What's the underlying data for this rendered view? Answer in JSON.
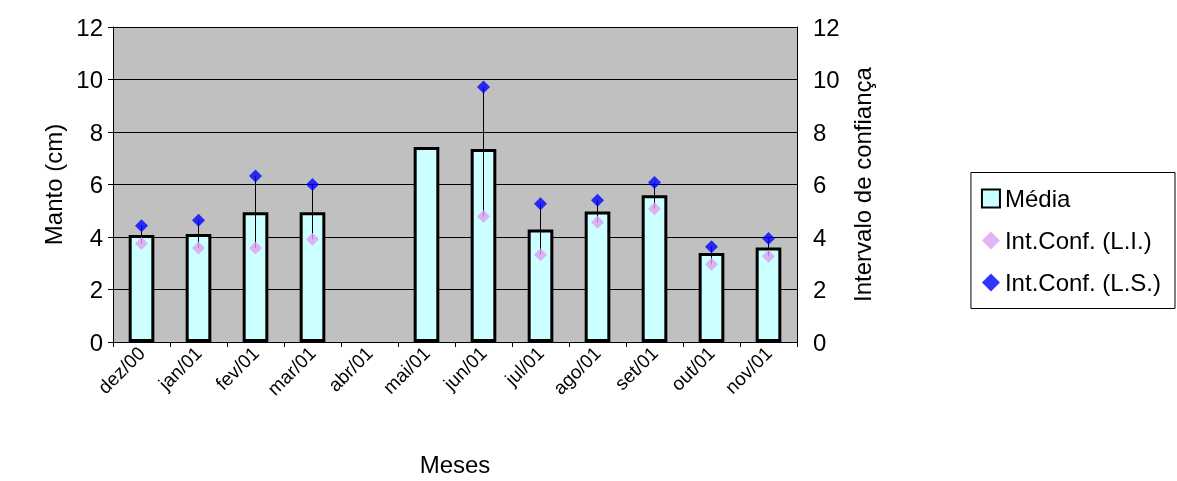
{
  "chart_data": {
    "type": "bar",
    "xlabel": "Meses",
    "ylabel": "Manto (cm)",
    "y2label": "Intervalo de confiança",
    "categories": [
      "dez/00",
      "jan/01",
      "fev/01",
      "mar/01",
      "abr/01",
      "mai/01",
      "jun/01",
      "jul/01",
      "ago/01",
      "set/01",
      "out/01",
      "nov/01"
    ],
    "series": [
      {
        "name": "Média",
        "color": "#ccffff",
        "values": [
          4.08,
          4.11,
          4.94,
          4.94,
          null,
          7.43,
          7.35,
          4.29,
          4.97,
          5.59,
          3.39,
          3.6
        ]
      },
      {
        "name": "Int.Conf. (L.I.)",
        "type": "scatter",
        "color": "#dda0f0",
        "values": [
          3.75,
          3.58,
          3.58,
          3.91,
          null,
          null,
          4.78,
          3.32,
          4.56,
          5.08,
          2.96,
          3.27
        ]
      },
      {
        "name": "Int.Conf. (L.S.)",
        "type": "scatter",
        "color": "#0000ff",
        "values": [
          4.43,
          4.64,
          6.32,
          6.0,
          null,
          null,
          9.71,
          5.27,
          5.4,
          6.08,
          3.63,
          3.94
        ]
      }
    ],
    "marker": "diamond",
    "ylim": [
      0,
      12
    ],
    "yticks": [
      0,
      2,
      4,
      6,
      8,
      10,
      12
    ],
    "y2lim": [
      0,
      12
    ],
    "y2ticks": [
      0,
      2,
      4,
      6,
      8,
      10,
      12
    ],
    "grid": "y",
    "legend": "right"
  }
}
